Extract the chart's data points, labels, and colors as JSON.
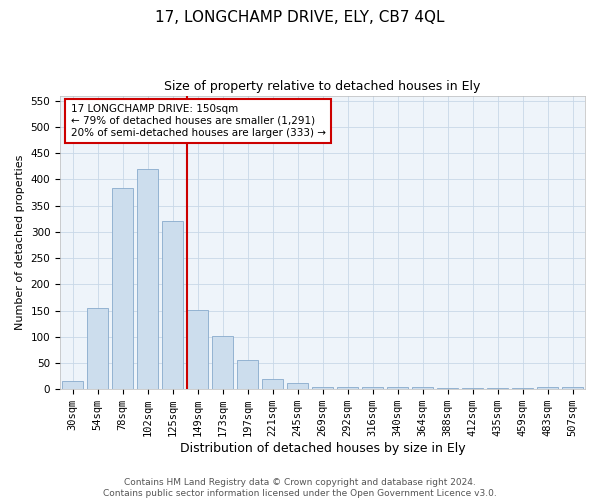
{
  "title_line1": "17, LONGCHAMP DRIVE, ELY, CB7 4QL",
  "title_line2": "Size of property relative to detached houses in Ely",
  "xlabel": "Distribution of detached houses by size in Ely",
  "ylabel": "Number of detached properties",
  "categories": [
    "30sqm",
    "54sqm",
    "78sqm",
    "102sqm",
    "125sqm",
    "149sqm",
    "173sqm",
    "197sqm",
    "221sqm",
    "245sqm",
    "269sqm",
    "292sqm",
    "316sqm",
    "340sqm",
    "364sqm",
    "388sqm",
    "412sqm",
    "435sqm",
    "459sqm",
    "483sqm",
    "507sqm"
  ],
  "values": [
    15,
    155,
    383,
    420,
    320,
    152,
    101,
    55,
    20,
    11,
    5,
    5,
    5,
    4,
    4,
    3,
    3,
    3,
    2,
    4,
    4
  ],
  "bar_color": "#ccdded",
  "bar_edge_color": "#88aacc",
  "highlight_index": 5,
  "highlight_line_color": "#cc0000",
  "ylim": [
    0,
    560
  ],
  "yticks": [
    0,
    50,
    100,
    150,
    200,
    250,
    300,
    350,
    400,
    450,
    500,
    550
  ],
  "annotation_text": "17 LONGCHAMP DRIVE: 150sqm\n← 79% of detached houses are smaller (1,291)\n20% of semi-detached houses are larger (333) →",
  "annotation_box_color": "#ffffff",
  "annotation_box_edge": "#cc0000",
  "footer_line1": "Contains HM Land Registry data © Crown copyright and database right 2024.",
  "footer_line2": "Contains public sector information licensed under the Open Government Licence v3.0.",
  "plot_bg_color": "#eef4fa",
  "fig_bg_color": "#ffffff",
  "grid_color": "#c8d8e8",
  "title1_fontsize": 11,
  "title2_fontsize": 9,
  "xlabel_fontsize": 9,
  "ylabel_fontsize": 8,
  "tick_fontsize": 7.5,
  "ann_fontsize": 7.5,
  "footer_fontsize": 6.5
}
